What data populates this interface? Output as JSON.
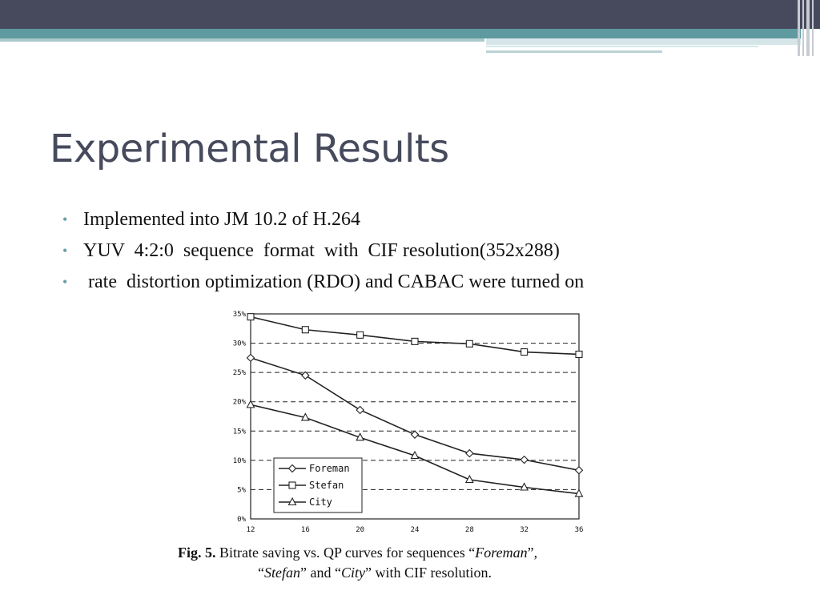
{
  "slide": {
    "title": "Experimental Results",
    "bullets": [
      "Implemented into JM 10.2 of H.264",
      "YUV  4:2:0  sequence  format  with  CIF resolution(352x288)",
      " rate  distortion optimization (RDO) and CABAC were turned on"
    ],
    "bullet_color": "#6a9ea3",
    "title_color": "#464a5c"
  },
  "caption": {
    "label": "Fig. 5.",
    "t1": " Bitrate saving vs. QP curves for sequences “",
    "i1": "Foreman",
    "t2": "”,",
    "t3": "“",
    "i2": "Stefan",
    "t4": "” and “",
    "i3": "City",
    "t5": "” with CIF resolution."
  },
  "chart_data": {
    "type": "line",
    "x": [
      12,
      16,
      20,
      24,
      28,
      32,
      36
    ],
    "xlim": [
      12,
      36
    ],
    "ylim": [
      0,
      35
    ],
    "yticks": [
      "0%",
      "5%",
      "10%",
      "15%",
      "20%",
      "25%",
      "30%",
      "35%"
    ],
    "xticks": [
      "12",
      "16",
      "20",
      "24",
      "28",
      "32",
      "36"
    ],
    "grid": "dashed horizontal",
    "legend_position": "bottom-left",
    "series": [
      {
        "name": "Foreman",
        "marker": "diamond",
        "values": [
          27.5,
          24.5,
          18.6,
          14.4,
          11.2,
          10.1,
          8.3
        ]
      },
      {
        "name": "Stefan",
        "marker": "square",
        "values": [
          34.5,
          32.3,
          31.4,
          30.3,
          29.9,
          28.5,
          28.1
        ]
      },
      {
        "name": "City",
        "marker": "triangle",
        "values": [
          19.5,
          17.3,
          13.9,
          10.8,
          6.7,
          5.4,
          4.3
        ]
      }
    ]
  }
}
